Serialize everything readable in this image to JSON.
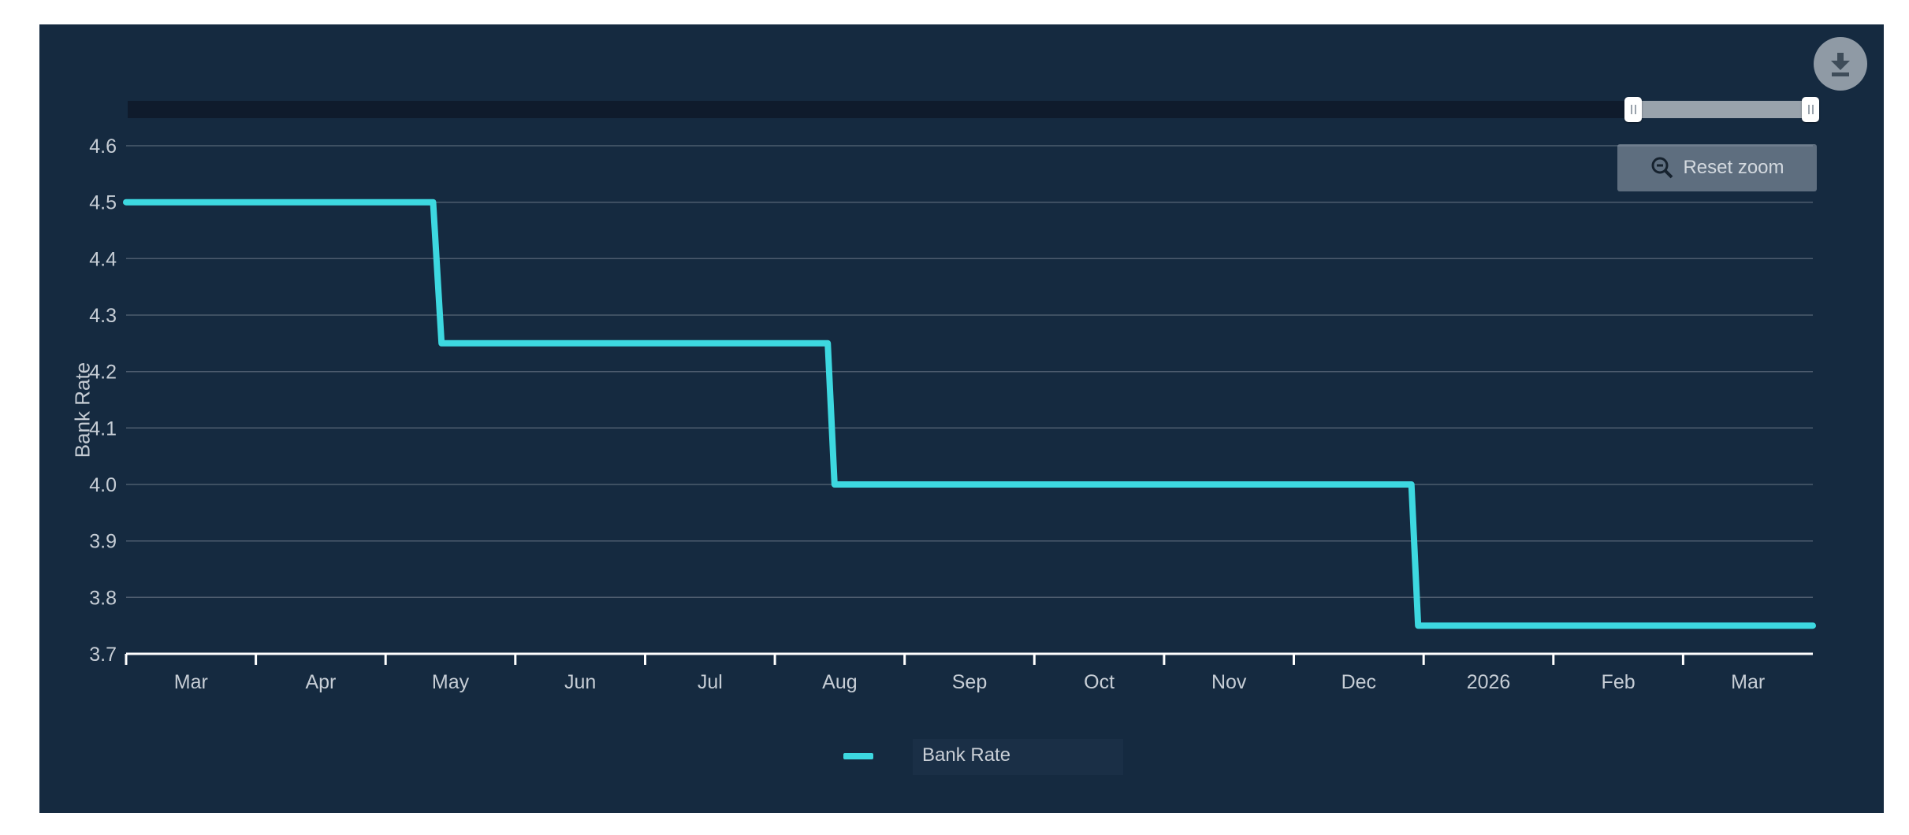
{
  "ui": {
    "download_button": "download-chart",
    "reset_zoom_label": "Reset zoom",
    "colors": {
      "page_background": "#FFFFFF",
      "panel_background": "#152A40",
      "series_cyan": "#3DD8E0",
      "grid_line": "#4D5C6E",
      "axis_line": "#FFFFFF",
      "tick_label": "#C6CDD5",
      "navigator_track": "#0F1B2C",
      "navigator_selected": "#99A3AC",
      "navigator_handle": "#FFFFFF",
      "download_circle": "#8F9AA5",
      "download_glyph": "#3E4C59",
      "reset_button_bg": "rgba(154,166,178,0.55)",
      "reset_button_text": "#D3D9DF",
      "legend_highlight": "#1A2F46"
    }
  },
  "chart_data": {
    "type": "line",
    "line_style": "step",
    "title": "",
    "xlabel": "",
    "ylabel": "Bank Rate",
    "ylim": [
      3.7,
      4.6
    ],
    "grid": true,
    "legend_position": "bottom-center",
    "x_tick_labels": [
      "Mar",
      "Apr",
      "May",
      "Jun",
      "Jul",
      "Aug",
      "Sep",
      "Oct",
      "Nov",
      "Dec",
      "2026",
      "Feb",
      "Mar"
    ],
    "y_tick_labels": [
      "4.6",
      "4.5",
      "4.4",
      "4.3",
      "4.2",
      "4.1",
      "4.0",
      "3.9",
      "3.8",
      "3.7"
    ],
    "series": [
      {
        "name": "Bank Rate",
        "color": "#3DD8E0",
        "steps": [
          {
            "value": 4.5,
            "x_start_frac": 0.0,
            "x_end_frac": 0.182
          },
          {
            "value": 4.25,
            "x_start_frac": 0.187,
            "x_end_frac": 0.416
          },
          {
            "value": 4.0,
            "x_start_frac": 0.42,
            "x_end_frac": 0.762
          },
          {
            "value": 3.75,
            "x_start_frac": 0.766,
            "x_end_frac": 1.0
          }
        ]
      }
    ]
  }
}
